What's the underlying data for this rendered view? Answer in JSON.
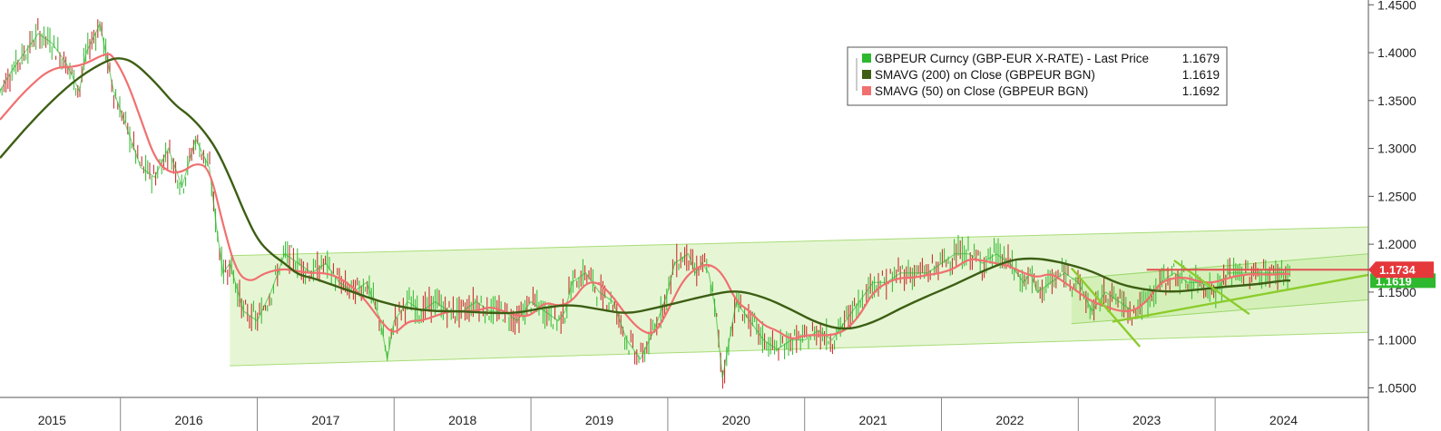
{
  "chart_data": {
    "type": "line",
    "title": "",
    "xlabel": "",
    "ylabel": "",
    "ylim": [
      1.04,
      1.455
    ],
    "x_range": [
      2014.62,
      2024.62
    ],
    "y_ticks": [
      "1.4500",
      "1.4000",
      "1.3500",
      "1.3000",
      "1.2500",
      "1.2000",
      "1.1500",
      "1.1000",
      "1.0500"
    ],
    "x_ticks": [
      {
        "label": "2015",
        "x": 2015.0
      },
      {
        "label": "2016",
        "x": 2016.0
      },
      {
        "label": "2017",
        "x": 2017.0
      },
      {
        "label": "2018",
        "x": 2018.0
      },
      {
        "label": "2019",
        "x": 2019.0
      },
      {
        "label": "2020",
        "x": 2020.0
      },
      {
        "label": "2021",
        "x": 2021.0
      },
      {
        "label": "2022",
        "x": 2022.0
      },
      {
        "label": "2023",
        "x": 2023.0
      },
      {
        "label": "2024",
        "x": 2024.0
      }
    ],
    "year_dividers": [
      2015.5,
      2016.5,
      2017.5,
      2018.5,
      2019.5,
      2020.5,
      2021.5,
      2022.5,
      2023.5
    ],
    "series": [
      {
        "name": "GBPEUR Curncy (GBP-EUR X-RATE) - Last Price",
        "last_value": "1.1679",
        "color": "#2db82d",
        "x": [
          2014.62,
          2014.7,
          2014.8,
          2014.9,
          2015.0,
          2015.1,
          2015.2,
          2015.25,
          2015.35,
          2015.45,
          2015.5,
          2015.55,
          2015.65,
          2015.75,
          2015.85,
          2015.95,
          2016.05,
          2016.15,
          2016.2,
          2016.25,
          2016.3,
          2016.4,
          2016.5,
          2016.6,
          2016.7,
          2016.8,
          2016.9,
          2017.0,
          2017.1,
          2017.2,
          2017.3,
          2017.4,
          2017.45,
          2017.5,
          2017.6,
          2017.7,
          2017.8,
          2017.9,
          2018.0,
          2018.1,
          2018.2,
          2018.3,
          2018.4,
          2018.5,
          2018.6,
          2018.7,
          2018.75,
          2018.8,
          2018.9,
          2019.0,
          2019.1,
          2019.15,
          2019.2,
          2019.3,
          2019.4,
          2019.5,
          2019.55,
          2019.65,
          2019.7,
          2019.75,
          2019.8,
          2019.85,
          2019.9,
          2020.0,
          2020.1,
          2020.2,
          2020.3,
          2020.4,
          2020.5,
          2020.6,
          2020.7,
          2020.8,
          2020.9,
          2021.0,
          2021.1,
          2021.2,
          2021.3,
          2021.4,
          2021.5,
          2021.6,
          2021.7,
          2021.8,
          2021.9,
          2022.0,
          2022.1,
          2022.15,
          2022.2,
          2022.3,
          2022.4,
          2022.5,
          2022.6,
          2022.7,
          2022.8,
          2022.9,
          2023.0,
          2023.1,
          2023.2,
          2023.3,
          2023.4,
          2023.5,
          2023.6,
          2023.7,
          2023.8,
          2023.9,
          2024.0,
          2024.05
        ],
        "values": [
          1.36,
          1.38,
          1.4,
          1.42,
          1.41,
          1.39,
          1.36,
          1.4,
          1.43,
          1.36,
          1.34,
          1.32,
          1.28,
          1.27,
          1.3,
          1.26,
          1.31,
          1.28,
          1.22,
          1.17,
          1.18,
          1.13,
          1.12,
          1.15,
          1.19,
          1.18,
          1.17,
          1.18,
          1.16,
          1.15,
          1.16,
          1.12,
          1.08,
          1.12,
          1.14,
          1.13,
          1.14,
          1.13,
          1.13,
          1.14,
          1.13,
          1.13,
          1.12,
          1.14,
          1.13,
          1.12,
          1.13,
          1.16,
          1.17,
          1.15,
          1.14,
          1.12,
          1.1,
          1.08,
          1.11,
          1.15,
          1.18,
          1.19,
          1.17,
          1.18,
          1.17,
          1.13,
          1.06,
          1.14,
          1.12,
          1.1,
          1.09,
          1.1,
          1.1,
          1.11,
          1.1,
          1.12,
          1.14,
          1.16,
          1.16,
          1.17,
          1.17,
          1.17,
          1.18,
          1.19,
          1.19,
          1.18,
          1.19,
          1.18,
          1.16,
          1.17,
          1.15,
          1.16,
          1.17,
          1.16,
          1.13,
          1.15,
          1.14,
          1.13,
          1.14,
          1.16,
          1.17,
          1.16,
          1.16,
          1.15,
          1.17,
          1.17,
          1.17,
          1.17,
          1.17,
          1.168
        ]
      },
      {
        "name": "SMAVG (200)  on Close (GBPEUR BGN)",
        "last_value": "1.1619",
        "color": "#3d5e14",
        "x": [
          2014.62,
          2014.8,
          2015.0,
          2015.2,
          2015.4,
          2015.5,
          2015.6,
          2015.75,
          2015.9,
          2016.0,
          2016.1,
          2016.2,
          2016.3,
          2016.4,
          2016.5,
          2016.6,
          2016.7,
          2016.8,
          2016.9,
          2017.0,
          2017.2,
          2017.4,
          2017.6,
          2017.8,
          2018.0,
          2018.2,
          2018.4,
          2018.6,
          2018.8,
          2019.0,
          2019.2,
          2019.4,
          2019.6,
          2019.8,
          2020.0,
          2020.2,
          2020.4,
          2020.6,
          2020.8,
          2021.0,
          2021.2,
          2021.4,
          2021.6,
          2021.8,
          2022.0,
          2022.1,
          2022.2,
          2022.3,
          2022.4,
          2022.6,
          2022.8,
          2023.0,
          2023.2,
          2023.4,
          2023.6,
          2023.8,
          2024.0,
          2024.05
        ],
        "values": [
          1.29,
          1.32,
          1.35,
          1.375,
          1.392,
          1.395,
          1.39,
          1.37,
          1.345,
          1.335,
          1.32,
          1.3,
          1.27,
          1.235,
          1.205,
          1.19,
          1.18,
          1.168,
          1.165,
          1.16,
          1.15,
          1.14,
          1.133,
          1.13,
          1.13,
          1.128,
          1.128,
          1.134,
          1.137,
          1.132,
          1.127,
          1.133,
          1.14,
          1.147,
          1.152,
          1.145,
          1.132,
          1.117,
          1.11,
          1.118,
          1.133,
          1.146,
          1.158,
          1.172,
          1.183,
          1.185,
          1.185,
          1.183,
          1.18,
          1.172,
          1.158,
          1.152,
          1.15,
          1.153,
          1.156,
          1.158,
          1.162,
          1.162
        ]
      },
      {
        "name": "SMAVG (50)  on Close (GBPEUR BGN)",
        "last_value": "1.1692",
        "color": "#f07070",
        "x": [
          2014.62,
          2014.8,
          2015.0,
          2015.2,
          2015.4,
          2015.45,
          2015.55,
          2015.65,
          2015.75,
          2015.85,
          2015.95,
          2016.05,
          2016.15,
          2016.25,
          2016.35,
          2016.45,
          2016.55,
          2016.7,
          2016.85,
          2017.0,
          2017.1,
          2017.2,
          2017.3,
          2017.4,
          2017.5,
          2017.6,
          2017.7,
          2017.8,
          2017.9,
          2018.0,
          2018.1,
          2018.2,
          2018.3,
          2018.4,
          2018.5,
          2018.6,
          2018.7,
          2018.8,
          2018.9,
          2019.0,
          2019.1,
          2019.2,
          2019.3,
          2019.4,
          2019.5,
          2019.6,
          2019.7,
          2019.8,
          2019.9,
          2020.0,
          2020.1,
          2020.2,
          2020.3,
          2020.4,
          2020.5,
          2020.6,
          2020.7,
          2020.8,
          2020.9,
          2021.0,
          2021.1,
          2021.2,
          2021.3,
          2021.4,
          2021.5,
          2021.6,
          2021.7,
          2021.8,
          2021.9,
          2022.0,
          2022.1,
          2022.2,
          2022.3,
          2022.4,
          2022.5,
          2022.6,
          2022.7,
          2022.8,
          2022.9,
          2023.0,
          2023.1,
          2023.2,
          2023.3,
          2023.4,
          2023.5,
          2023.6,
          2023.7,
          2023.8,
          2023.9,
          2024.0,
          2024.05
        ],
        "values": [
          1.33,
          1.36,
          1.385,
          1.385,
          1.4,
          1.396,
          1.37,
          1.33,
          1.29,
          1.275,
          1.275,
          1.285,
          1.28,
          1.22,
          1.17,
          1.16,
          1.17,
          1.175,
          1.17,
          1.17,
          1.165,
          1.155,
          1.14,
          1.12,
          1.105,
          1.12,
          1.12,
          1.125,
          1.13,
          1.13,
          1.13,
          1.135,
          1.13,
          1.125,
          1.125,
          1.14,
          1.135,
          1.14,
          1.16,
          1.16,
          1.145,
          1.125,
          1.11,
          1.105,
          1.13,
          1.16,
          1.175,
          1.18,
          1.17,
          1.14,
          1.13,
          1.115,
          1.11,
          1.1,
          1.105,
          1.105,
          1.105,
          1.11,
          1.125,
          1.15,
          1.16,
          1.165,
          1.165,
          1.168,
          1.17,
          1.175,
          1.185,
          1.183,
          1.18,
          1.177,
          1.17,
          1.165,
          1.17,
          1.16,
          1.15,
          1.14,
          1.135,
          1.13,
          1.13,
          1.14,
          1.16,
          1.165,
          1.165,
          1.16,
          1.16,
          1.165,
          1.168,
          1.169,
          1.168,
          1.169,
          1.169
        ]
      }
    ],
    "channel_outer": {
      "upper": [
        [
          2016.3,
          1.188
        ],
        [
          2024.62,
          1.218
        ]
      ],
      "lower": [
        [
          2016.3,
          1.073
        ],
        [
          2024.62,
          1.108
        ]
      ]
    },
    "channel_inner": {
      "upper": [
        [
          2022.45,
          1.164
        ],
        [
          2024.62,
          1.19
        ]
      ],
      "lower": [
        [
          2022.45,
          1.117
        ],
        [
          2024.62,
          1.142
        ]
      ]
    },
    "annotation_lines": [
      {
        "kind": "support",
        "from": [
          2022.75,
          1.119
        ],
        "to": [
          2024.62,
          1.168
        ]
      },
      {
        "kind": "descending",
        "from": [
          2022.45,
          1.175
        ],
        "to": [
          2022.95,
          1.093
        ]
      },
      {
        "kind": "descending",
        "from": [
          2023.2,
          1.183
        ],
        "to": [
          2023.75,
          1.127
        ]
      },
      {
        "kind": "horizontal",
        "from": [
          2023.0,
          1.1734
        ],
        "to": [
          2024.62,
          1.1734
        ]
      }
    ],
    "price_tag": {
      "value": "1.1734",
      "y": 1.1734,
      "color": "#e5383b"
    },
    "hidden_tag": {
      "value": "1.1619",
      "y": 1.1619
    },
    "legend": {
      "placement": "top-right",
      "entries": [
        {
          "label": "GBPEUR Curncy (GBP-EUR X-RATE) - Last Price",
          "value": "1.1679",
          "color": "#2db82d"
        },
        {
          "label": "SMAVG (200)  on Close (GBPEUR BGN)",
          "value": "1.1619",
          "color": "#3d5e14"
        },
        {
          "label": "SMAVG (50)  on Close (GBPEUR BGN)",
          "value": "1.1692",
          "color": "#f07070"
        }
      ]
    },
    "grid": false
  }
}
